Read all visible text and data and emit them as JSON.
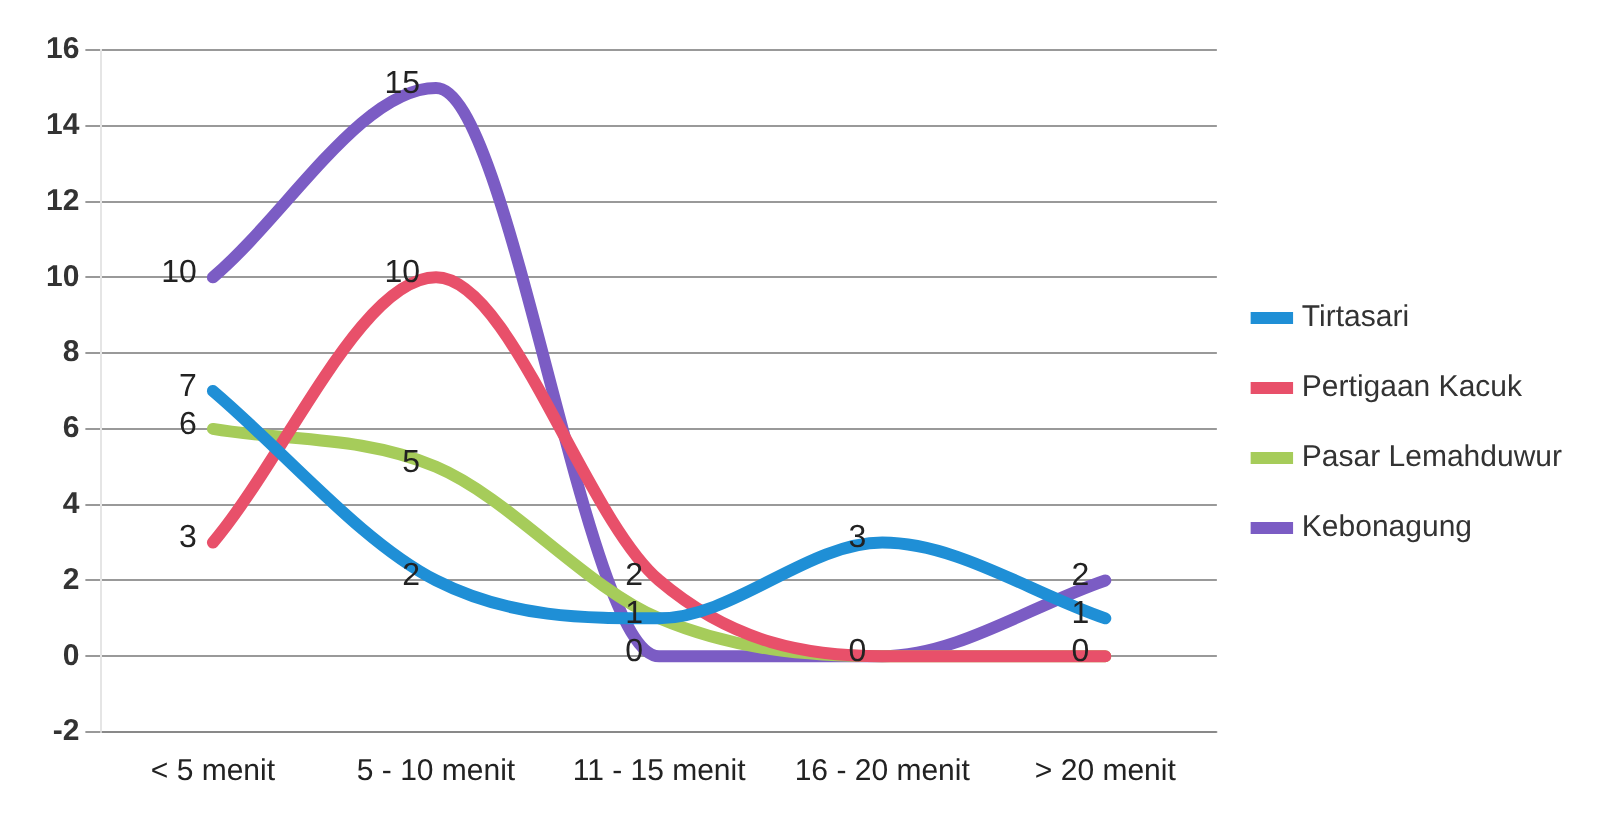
{
  "chart_data": {
    "type": "line",
    "categories": [
      "< 5 menit",
      "5 - 10 menit",
      "11 - 15 menit",
      "16 - 20 menit",
      "> 20 menit"
    ],
    "series": [
      {
        "name": "Tirtasari",
        "color": "#1f8fd6",
        "values": [
          7,
          2,
          1,
          3,
          1
        ],
        "value_labels": [
          "7",
          "2",
          "1",
          "3",
          "1"
        ]
      },
      {
        "name": "Pertigaan Kacuk",
        "color": "#e8506a",
        "values": [
          3,
          10,
          2,
          0,
          0
        ],
        "value_labels": [
          "3",
          "10",
          "2",
          "0",
          "0"
        ]
      },
      {
        "name": "Pasar Lemahduwur",
        "color": "#a6cc5a",
        "values": [
          6,
          5,
          1,
          0,
          0
        ],
        "value_labels": [
          "6",
          "5",
          null,
          null,
          null
        ]
      },
      {
        "name": "Kebonagung",
        "color": "#7b5cc4",
        "values": [
          10,
          15,
          0,
          0,
          2
        ],
        "value_labels": [
          "10",
          "15",
          "0",
          null,
          "2"
        ]
      }
    ],
    "ylim": [
      -2,
      16
    ],
    "yticks": [
      -2,
      0,
      2,
      4,
      6,
      8,
      10,
      12,
      14,
      16
    ],
    "grid": "y",
    "legend": "right",
    "marker": "none",
    "line_style": "solid"
  }
}
